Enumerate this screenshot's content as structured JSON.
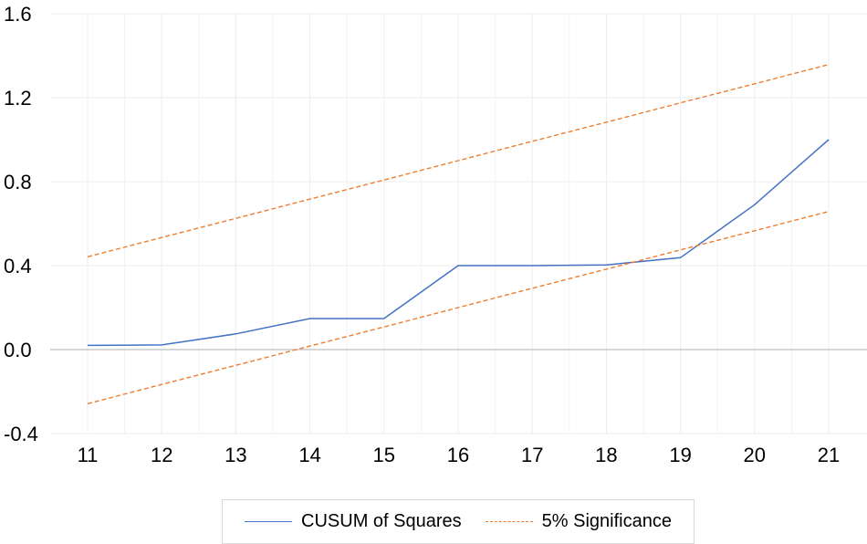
{
  "chart_data": {
    "type": "line",
    "x": [
      11,
      12,
      13,
      14,
      15,
      16,
      17,
      18,
      19,
      20,
      21
    ],
    "xticks": [
      "11",
      "12",
      "13",
      "14",
      "15",
      "16",
      "17",
      "18",
      "19",
      "20",
      "21"
    ],
    "yticks": [
      "1.6",
      "1.2",
      "0.8",
      "0.4",
      "0.0",
      "-0.4"
    ],
    "ylim": [
      -0.4,
      1.6
    ],
    "xlim": [
      11,
      21
    ],
    "grid": "vertical and horizontal",
    "legend_position": "bottom",
    "series": [
      {
        "name": "CUSUM of Squares",
        "style": "solid",
        "color": "#4472c4",
        "values": [
          0.02,
          0.022,
          0.075,
          0.148,
          0.148,
          0.4,
          0.4,
          0.403,
          0.438,
          0.69,
          1.0
        ]
      },
      {
        "name": "5% Significance",
        "style": "dashed",
        "color": "#ed7d31",
        "values": [
          0.442,
          0.534,
          0.625,
          0.717,
          0.808,
          0.9,
          0.992,
          1.083,
          1.175,
          1.266,
          1.358
        ]
      },
      {
        "name": "5% Significance",
        "style": "dashed",
        "color": "#ed7d31",
        "values": [
          -0.258,
          -0.166,
          -0.075,
          0.017,
          0.108,
          0.2,
          0.292,
          0.383,
          0.475,
          0.566,
          0.658
        ]
      }
    ]
  }
}
